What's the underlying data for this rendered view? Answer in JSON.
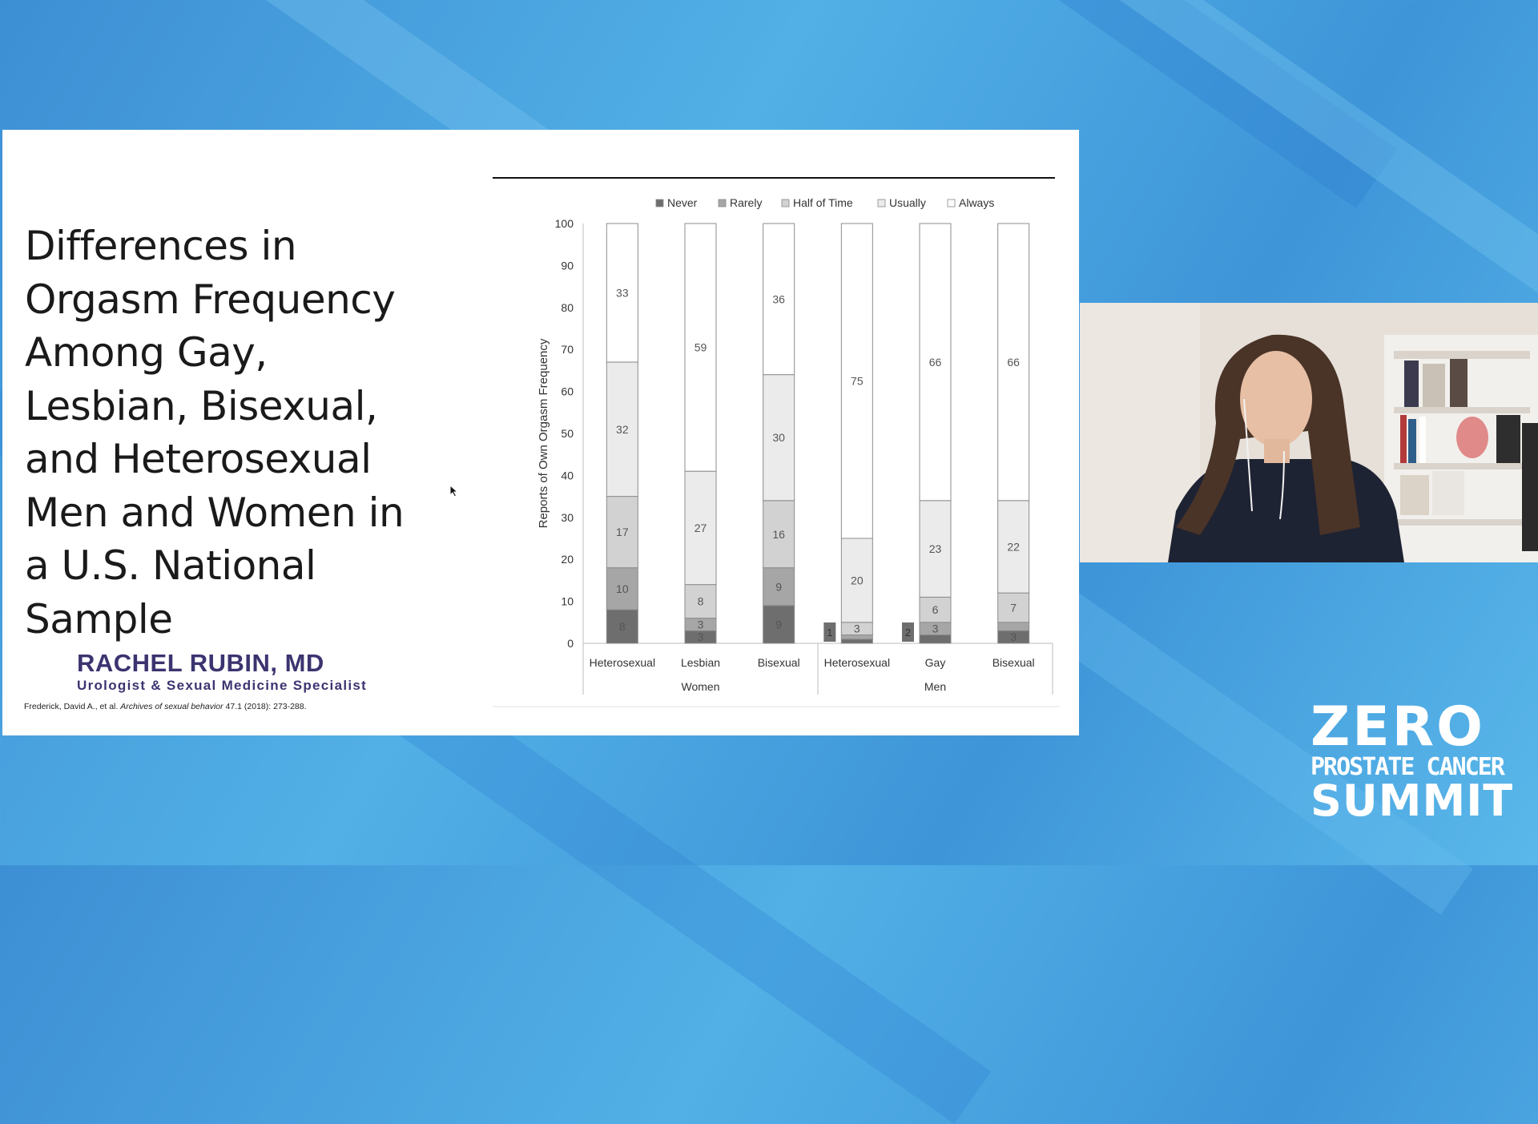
{
  "slide": {
    "title_lines": [
      "Differences in",
      "Orgasm Frequency",
      "Among Gay,",
      "Lesbian, Bisexual,",
      "and Heterosexual",
      "Men and Women in",
      "a U.S. National",
      "Sample"
    ],
    "presenter_name": "RACHEL RUBIN, MD",
    "presenter_role": "Urologist & Sexual Medicine Specialist",
    "citation_prefix": "Frederick, David A., et al. ",
    "citation_journal": "Archives of sexual behavior",
    "citation_suffix": " 47.1 (2018): 273-288."
  },
  "logo": {
    "line1": "ZERO",
    "line2": "PROSTATE CANCER",
    "line3": "SUMMIT"
  },
  "colors": {
    "Never": "#6e6e6e",
    "Rarely": "#a6a6a6",
    "Half of Time": "#d2d2d2",
    "Usually": "#ebebeb",
    "Always": "#ffffff",
    "logo": "#ffffff",
    "presenter": "#3b3470"
  },
  "chart_data": {
    "type": "bar",
    "stacked": true,
    "ylabel": "Reports of Own Orgasm Frequency",
    "ylim": [
      0,
      100
    ],
    "y_ticks": [
      0,
      10,
      20,
      30,
      40,
      50,
      60,
      70,
      80,
      90,
      100
    ],
    "groups": [
      "Women",
      "Men"
    ],
    "categories": [
      "Heterosexual",
      "Lesbian",
      "Bisexual",
      "Heterosexual",
      "Gay",
      "Bisexual"
    ],
    "category_group": [
      "Women",
      "Women",
      "Women",
      "Men",
      "Men",
      "Men"
    ],
    "series": [
      {
        "name": "Never",
        "values": [
          8,
          3,
          9,
          1,
          2,
          3
        ]
      },
      {
        "name": "Rarely",
        "values": [
          10,
          3,
          9,
          1,
          3,
          2
        ]
      },
      {
        "name": "Half of Time",
        "values": [
          17,
          8,
          16,
          3,
          6,
          7
        ]
      },
      {
        "name": "Usually",
        "values": [
          32,
          27,
          30,
          20,
          23,
          22
        ]
      },
      {
        "name": "Always",
        "values": [
          33,
          59,
          36,
          75,
          66,
          66
        ]
      }
    ],
    "legend": "top",
    "grid": false
  }
}
